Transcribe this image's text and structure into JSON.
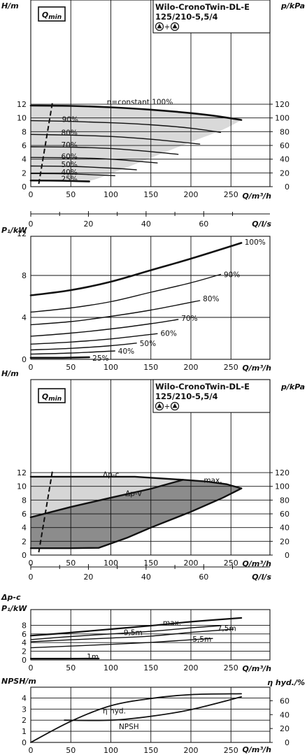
{
  "title_lines": [
    "Wilo-CronoTwin-DL-E",
    "125/210-5,5/4"
  ],
  "operation_symbols": [
    "pump-icon",
    "+",
    "pump-icon"
  ],
  "qmin_label": "Qmin",
  "chart_data": [
    {
      "type": "line",
      "title": "",
      "ylabel": "H/m",
      "ylabel_right": "p/kPa",
      "xlabel": "Q/m³/h",
      "xlabel_secondary": "Q/l/s",
      "xlim": [
        0,
        300
      ],
      "ylim": [
        0,
        13
      ],
      "x_ticks": [
        0,
        50,
        100,
        150,
        200,
        250
      ],
      "y_ticks": [
        0,
        2,
        4,
        6,
        8,
        10,
        12
      ],
      "y_right_ticks": [
        0,
        20,
        40,
        60,
        80,
        100,
        120
      ],
      "x_secondary_ticks": [
        0,
        20,
        40,
        60
      ],
      "grid": true,
      "series": [
        {
          "name": "n=constant 100%",
          "x": [
            0,
            50,
            100,
            150,
            200,
            230,
            263
          ],
          "y": [
            11.8,
            11.75,
            11.55,
            11.2,
            10.7,
            10.3,
            9.7
          ]
        },
        {
          "name": "90%",
          "x": [
            0,
            50,
            100,
            150,
            200,
            237
          ],
          "y": [
            9.6,
            9.5,
            9.3,
            9.0,
            8.5,
            7.9
          ]
        },
        {
          "name": "80%",
          "x": [
            0,
            50,
            100,
            150,
            211
          ],
          "y": [
            7.6,
            7.5,
            7.3,
            6.9,
            6.2
          ]
        },
        {
          "name": "70%",
          "x": [
            0,
            50,
            100,
            150,
            184
          ],
          "y": [
            5.8,
            5.75,
            5.55,
            5.1,
            4.7
          ]
        },
        {
          "name": "60%",
          "x": [
            0,
            50,
            100,
            158
          ],
          "y": [
            4.25,
            4.2,
            4.0,
            3.45
          ]
        },
        {
          "name": "50%",
          "x": [
            0,
            50,
            100,
            132
          ],
          "y": [
            3.0,
            2.95,
            2.7,
            2.45
          ]
        },
        {
          "name": "40%",
          "x": [
            0,
            50,
            105
          ],
          "y": [
            1.9,
            1.85,
            1.6
          ]
        },
        {
          "name": "25%",
          "x": [
            0,
            40,
            73
          ],
          "y": [
            0.9,
            0.85,
            0.75
          ]
        }
      ],
      "qmin_line": {
        "x": [
          10,
          27
        ],
        "y": [
          0.4,
          12.2
        ]
      },
      "area_envelope": {
        "upper": {
          "x": [
            0,
            50,
            100,
            150,
            200,
            230,
            263
          ],
          "y": [
            11.8,
            11.75,
            11.55,
            11.2,
            10.7,
            10.3,
            9.7
          ]
        },
        "lower": {
          "x": [
            0,
            50,
            73,
            100,
            150,
            200,
            240,
            263
          ],
          "y": [
            0.95,
            0.9,
            0.85,
            1.9,
            4.2,
            6.5,
            8.3,
            9.7
          ]
        }
      },
      "curve_labels": [
        {
          "text": "n=constant 100%",
          "x": 95,
          "y": 12.35
        },
        {
          "text": "90%",
          "x": 39,
          "y": 9.8
        },
        {
          "text": "80%",
          "x": 38,
          "y": 7.9
        },
        {
          "text": "70%",
          "x": 38,
          "y": 6.1
        },
        {
          "text": "60%",
          "x": 38,
          "y": 4.4
        },
        {
          "text": "50%",
          "x": 38,
          "y": 3.25
        },
        {
          "text": "40%",
          "x": 38,
          "y": 2.15
        },
        {
          "text": "25%",
          "x": 38,
          "y": 1.15
        }
      ]
    },
    {
      "type": "line",
      "title": "",
      "ylabel": "P₁/kW",
      "xlabel": "Q/m³/h",
      "xlim": [
        0,
        300
      ],
      "ylim": [
        0,
        14
      ],
      "x_ticks": [
        0,
        50,
        100,
        150,
        200,
        250
      ],
      "y_ticks": [
        0,
        4,
        8,
        12
      ],
      "grid": true,
      "series": [
        {
          "name": "100%",
          "x": [
            0,
            50,
            100,
            150,
            200,
            263
          ],
          "y": [
            6.1,
            6.6,
            7.4,
            8.5,
            9.6,
            11.1
          ]
        },
        {
          "name": "90%",
          "x": [
            0,
            50,
            100,
            150,
            200,
            237
          ],
          "y": [
            4.5,
            4.9,
            5.5,
            6.4,
            7.3,
            8.1
          ]
        },
        {
          "name": "80%",
          "x": [
            0,
            50,
            100,
            150,
            211
          ],
          "y": [
            3.3,
            3.6,
            4.1,
            4.7,
            5.6
          ]
        },
        {
          "name": "70%",
          "x": [
            0,
            50,
            100,
            150,
            184
          ],
          "y": [
            2.2,
            2.5,
            2.9,
            3.4,
            3.8
          ]
        },
        {
          "name": "60%",
          "x": [
            0,
            50,
            100,
            158
          ],
          "y": [
            1.45,
            1.65,
            1.95,
            2.45
          ]
        },
        {
          "name": "50%",
          "x": [
            0,
            50,
            100,
            132
          ],
          "y": [
            0.9,
            1.05,
            1.3,
            1.55
          ]
        },
        {
          "name": "40%",
          "x": [
            0,
            50,
            105
          ],
          "y": [
            0.5,
            0.6,
            0.8
          ]
        },
        {
          "name": "25%",
          "x": [
            0,
            40,
            73
          ],
          "y": [
            0.15,
            0.15,
            0.2
          ]
        }
      ],
      "curve_labels": [
        {
          "text": "100%",
          "x": 267,
          "y": 11.2
        },
        {
          "text": "90%",
          "x": 241,
          "y": 8.1
        },
        {
          "text": "80%",
          "x": 215,
          "y": 5.8
        },
        {
          "text": "70%",
          "x": 188,
          "y": 3.95
        },
        {
          "text": "60%",
          "x": 162,
          "y": 2.5
        },
        {
          "text": "50%",
          "x": 136,
          "y": 1.55
        },
        {
          "text": "40%",
          "x": 109,
          "y": 0.8
        },
        {
          "text": "25%",
          "x": 77,
          "y": 0.15
        }
      ]
    },
    {
      "type": "area",
      "title": "",
      "ylabel": "H/m",
      "ylabel_right": "p/kPa",
      "xlabel": "Q/m³/h",
      "xlabel_secondary": "Q/l/s",
      "xlim": [
        0,
        300
      ],
      "ylim": [
        0,
        13
      ],
      "x_ticks": [
        0,
        50,
        100,
        150,
        200,
        250
      ],
      "y_ticks": [
        0,
        2,
        4,
        6,
        8,
        10,
        12
      ],
      "y_right_ticks": [
        0,
        20,
        40,
        60,
        80,
        100,
        120
      ],
      "x_secondary_ticks": [
        0,
        20,
        40,
        60
      ],
      "grid": true,
      "series": [
        {
          "name": "Δp-c",
          "x": [
            0,
            130,
            190
          ],
          "y": [
            11.4,
            11.4,
            10.95
          ]
        },
        {
          "name": "Δp-v",
          "x": [
            0,
            50,
            100,
            150,
            190
          ],
          "y": [
            5.5,
            7.0,
            8.35,
            9.65,
            10.95
          ]
        },
        {
          "name": "max.",
          "x": [
            190,
            220,
            245,
            263
          ],
          "y": [
            10.95,
            10.7,
            10.3,
            9.7
          ]
        }
      ],
      "qmin_line": {
        "x": [
          10,
          27
        ],
        "y": [
          0.4,
          12.2
        ]
      },
      "light_area": {
        "x": [
          0,
          130,
          190,
          0
        ],
        "y": [
          11.4,
          11.4,
          10.95,
          5.5
        ]
      },
      "dark_area": {
        "upper": {
          "x": [
            0,
            50,
            100,
            150,
            190,
            220,
            245,
            263
          ],
          "y": [
            5.5,
            7.0,
            8.35,
            9.65,
            10.95,
            10.7,
            10.3,
            9.7
          ]
        },
        "lower": {
          "x": [
            0,
            50,
            85,
            120,
            150,
            200,
            240,
            263
          ],
          "y": [
            1.0,
            1.0,
            1.05,
            2.5,
            4.0,
            6.3,
            8.35,
            9.7
          ]
        }
      },
      "curve_labels": [
        {
          "text": "Δp-c",
          "x": 90,
          "y": 11.75
        },
        {
          "text": "Δp-v",
          "x": 118,
          "y": 9.0
        },
        {
          "text": "max.",
          "x": 216,
          "y": 10.95
        }
      ]
    },
    {
      "type": "line",
      "title": "",
      "ylabel": "Δp-c",
      "ylabel_line2": "P₁/kW",
      "xlabel": "Q/m³/h",
      "xlim": [
        0,
        300
      ],
      "ylim": [
        0,
        10
      ],
      "x_ticks": [
        0,
        50,
        100,
        150,
        200,
        250
      ],
      "y_ticks": [
        0,
        2,
        4,
        6,
        8
      ],
      "grid": true,
      "series": [
        {
          "name": "max.",
          "x": [
            0,
            50,
            100,
            150,
            200,
            263
          ],
          "y": [
            5.6,
            6.3,
            7.1,
            7.9,
            8.8,
            9.7
          ]
        },
        {
          "name": "9,5m",
          "x": [
            0,
            50,
            100,
            150,
            200,
            237
          ],
          "y": [
            4.7,
            5.4,
            6.0,
            6.6,
            7.4,
            7.9
          ]
        },
        {
          "name": "7,5m",
          "x": [
            0,
            50,
            100,
            150,
            200,
            253
          ],
          "y": [
            4.2,
            4.65,
            5.05,
            5.5,
            6.35,
            7.1
          ]
        },
        {
          "name": "5,5m",
          "x": [
            0,
            50,
            100,
            150,
            200,
            227
          ],
          "y": [
            2.8,
            3.2,
            3.6,
            4.05,
            4.65,
            4.95
          ]
        },
        {
          "name": "1m",
          "x": [
            0,
            40,
            85
          ],
          "y": [
            0.3,
            0.3,
            0.32
          ]
        }
      ],
      "curve_labels": [
        {
          "text": "max.",
          "x": 165,
          "y": 8.6
        },
        {
          "text": "9,5m",
          "x": 116,
          "y": 6.4
        },
        {
          "text": "7,5m",
          "x": 233,
          "y": 7.3
        },
        {
          "text": "5,5m",
          "x": 202,
          "y": 4.8
        },
        {
          "text": "1m",
          "x": 70,
          "y": 0.8
        }
      ]
    },
    {
      "type": "line",
      "title": "",
      "ylabel": "NPSH/m",
      "ylabel_right": "η hyd./%",
      "xlabel": "Q/m³/h",
      "xlim": [
        0,
        300
      ],
      "ylim": [
        0,
        5
      ],
      "x_ticks": [
        0,
        50,
        100,
        150,
        200,
        250
      ],
      "y_ticks": [
        0,
        1,
        2,
        3,
        4
      ],
      "y_right_ticks": [
        0,
        20,
        40,
        60
      ],
      "grid": true,
      "series": [
        {
          "name": "η hyd.",
          "x": [
            0,
            50,
            100,
            150,
            200,
            263
          ],
          "y": [
            0.0,
            1.9,
            3.3,
            3.95,
            4.3,
            4.38
          ]
        },
        {
          "name": "NPSH",
          "x": [
            42,
            100,
            150,
            200,
            263
          ],
          "y": [
            2.0,
            2.0,
            2.35,
            2.95,
            4.1
          ]
        }
      ],
      "curve_labels": [
        {
          "text": "η hyd.",
          "x": 90,
          "y": 2.85
        },
        {
          "text": "NPSH",
          "x": 110,
          "y": 1.45
        }
      ]
    }
  ]
}
